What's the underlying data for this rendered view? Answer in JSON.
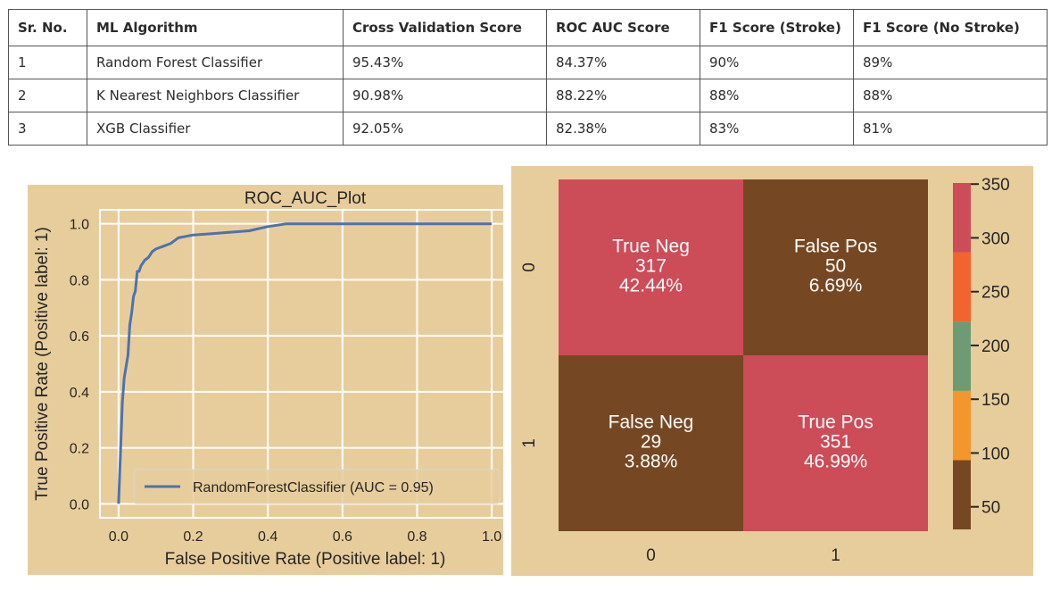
{
  "table": {
    "headers": [
      "Sr. No.",
      "ML Algorithm",
      "Cross Validation Score",
      "ROC AUC Score",
      "F1 Score (Stroke)",
      "F1 Score (No Stroke)"
    ],
    "rows": [
      [
        "1",
        "Random Forest Classifier",
        "95.43%",
        "84.37%",
        "90%",
        "89%"
      ],
      [
        "2",
        "K Nearest Neighbors Classifier",
        "90.98%",
        "88.22%",
        "88%",
        "88%"
      ],
      [
        "3",
        "XGB Classifier",
        "92.05%",
        "82.38%",
        "83%",
        "81%"
      ]
    ]
  },
  "chart_data": [
    {
      "type": "line",
      "title": "ROC_AUC_Plot",
      "xlabel": "False Positive Rate (Positive label: 1)",
      "ylabel": "True Positive Rate (Positive label: 1)",
      "xlim": [
        -0.05,
        1.05
      ],
      "ylim": [
        -0.05,
        1.05
      ],
      "xticks": [
        "0.0",
        "0.2",
        "0.4",
        "0.6",
        "0.8",
        "1.0"
      ],
      "yticks": [
        "0.0",
        "0.2",
        "0.4",
        "0.6",
        "0.8",
        "1.0"
      ],
      "grid": true,
      "legend_position": "bottom-right",
      "background": "#e8cd9c",
      "series": [
        {
          "name": "RandomForestClassifier (AUC = 0.95)",
          "color": "#4c72b0",
          "x": [
            0.0,
            0.005,
            0.01,
            0.015,
            0.025,
            0.03,
            0.035,
            0.04,
            0.045,
            0.05,
            0.055,
            0.06,
            0.065,
            0.07,
            0.08,
            0.09,
            0.1,
            0.12,
            0.14,
            0.16,
            0.18,
            0.2,
            0.25,
            0.3,
            0.35,
            0.4,
            0.45,
            0.5,
            0.6,
            0.7,
            0.8,
            0.9,
            1.0
          ],
          "y": [
            0.0,
            0.18,
            0.36,
            0.45,
            0.53,
            0.64,
            0.68,
            0.74,
            0.76,
            0.83,
            0.83,
            0.85,
            0.86,
            0.87,
            0.88,
            0.9,
            0.91,
            0.92,
            0.93,
            0.95,
            0.955,
            0.96,
            0.965,
            0.97,
            0.975,
            0.99,
            1.0,
            1.0,
            1.0,
            1.0,
            1.0,
            1.0,
            1.0
          ]
        }
      ]
    },
    {
      "type": "heatmap",
      "x_categories": [
        "0",
        "1"
      ],
      "y_categories": [
        "0",
        "1"
      ],
      "cells": [
        {
          "row": 0,
          "col": 0,
          "label": "True Neg",
          "count": 317,
          "percent": "42.44%",
          "color": "#cc4c57"
        },
        {
          "row": 0,
          "col": 1,
          "label": "False Pos",
          "count": 50,
          "percent": "6.69%",
          "color": "#754823"
        },
        {
          "row": 1,
          "col": 0,
          "label": "False Neg",
          "count": 29,
          "percent": "3.88%",
          "color": "#754823"
        },
        {
          "row": 1,
          "col": 1,
          "label": "True Pos",
          "count": 351,
          "percent": "46.99%",
          "color": "#cc4c57"
        }
      ],
      "colorbar": {
        "range": [
          29,
          351
        ],
        "ticks": [
          "50",
          "100",
          "150",
          "200",
          "250",
          "300",
          "350"
        ],
        "bands": [
          {
            "from": 29,
            "to": 93.4,
            "color": "#754823"
          },
          {
            "from": 93.4,
            "to": 157.8,
            "color": "#f3962b"
          },
          {
            "from": 157.8,
            "to": 222.2,
            "color": "#6e9b73"
          },
          {
            "from": 222.2,
            "to": 286.6,
            "color": "#f1632f"
          },
          {
            "from": 286.6,
            "to": 351,
            "color": "#cc4c57"
          }
        ]
      },
      "background": "#e8cd9c"
    }
  ]
}
